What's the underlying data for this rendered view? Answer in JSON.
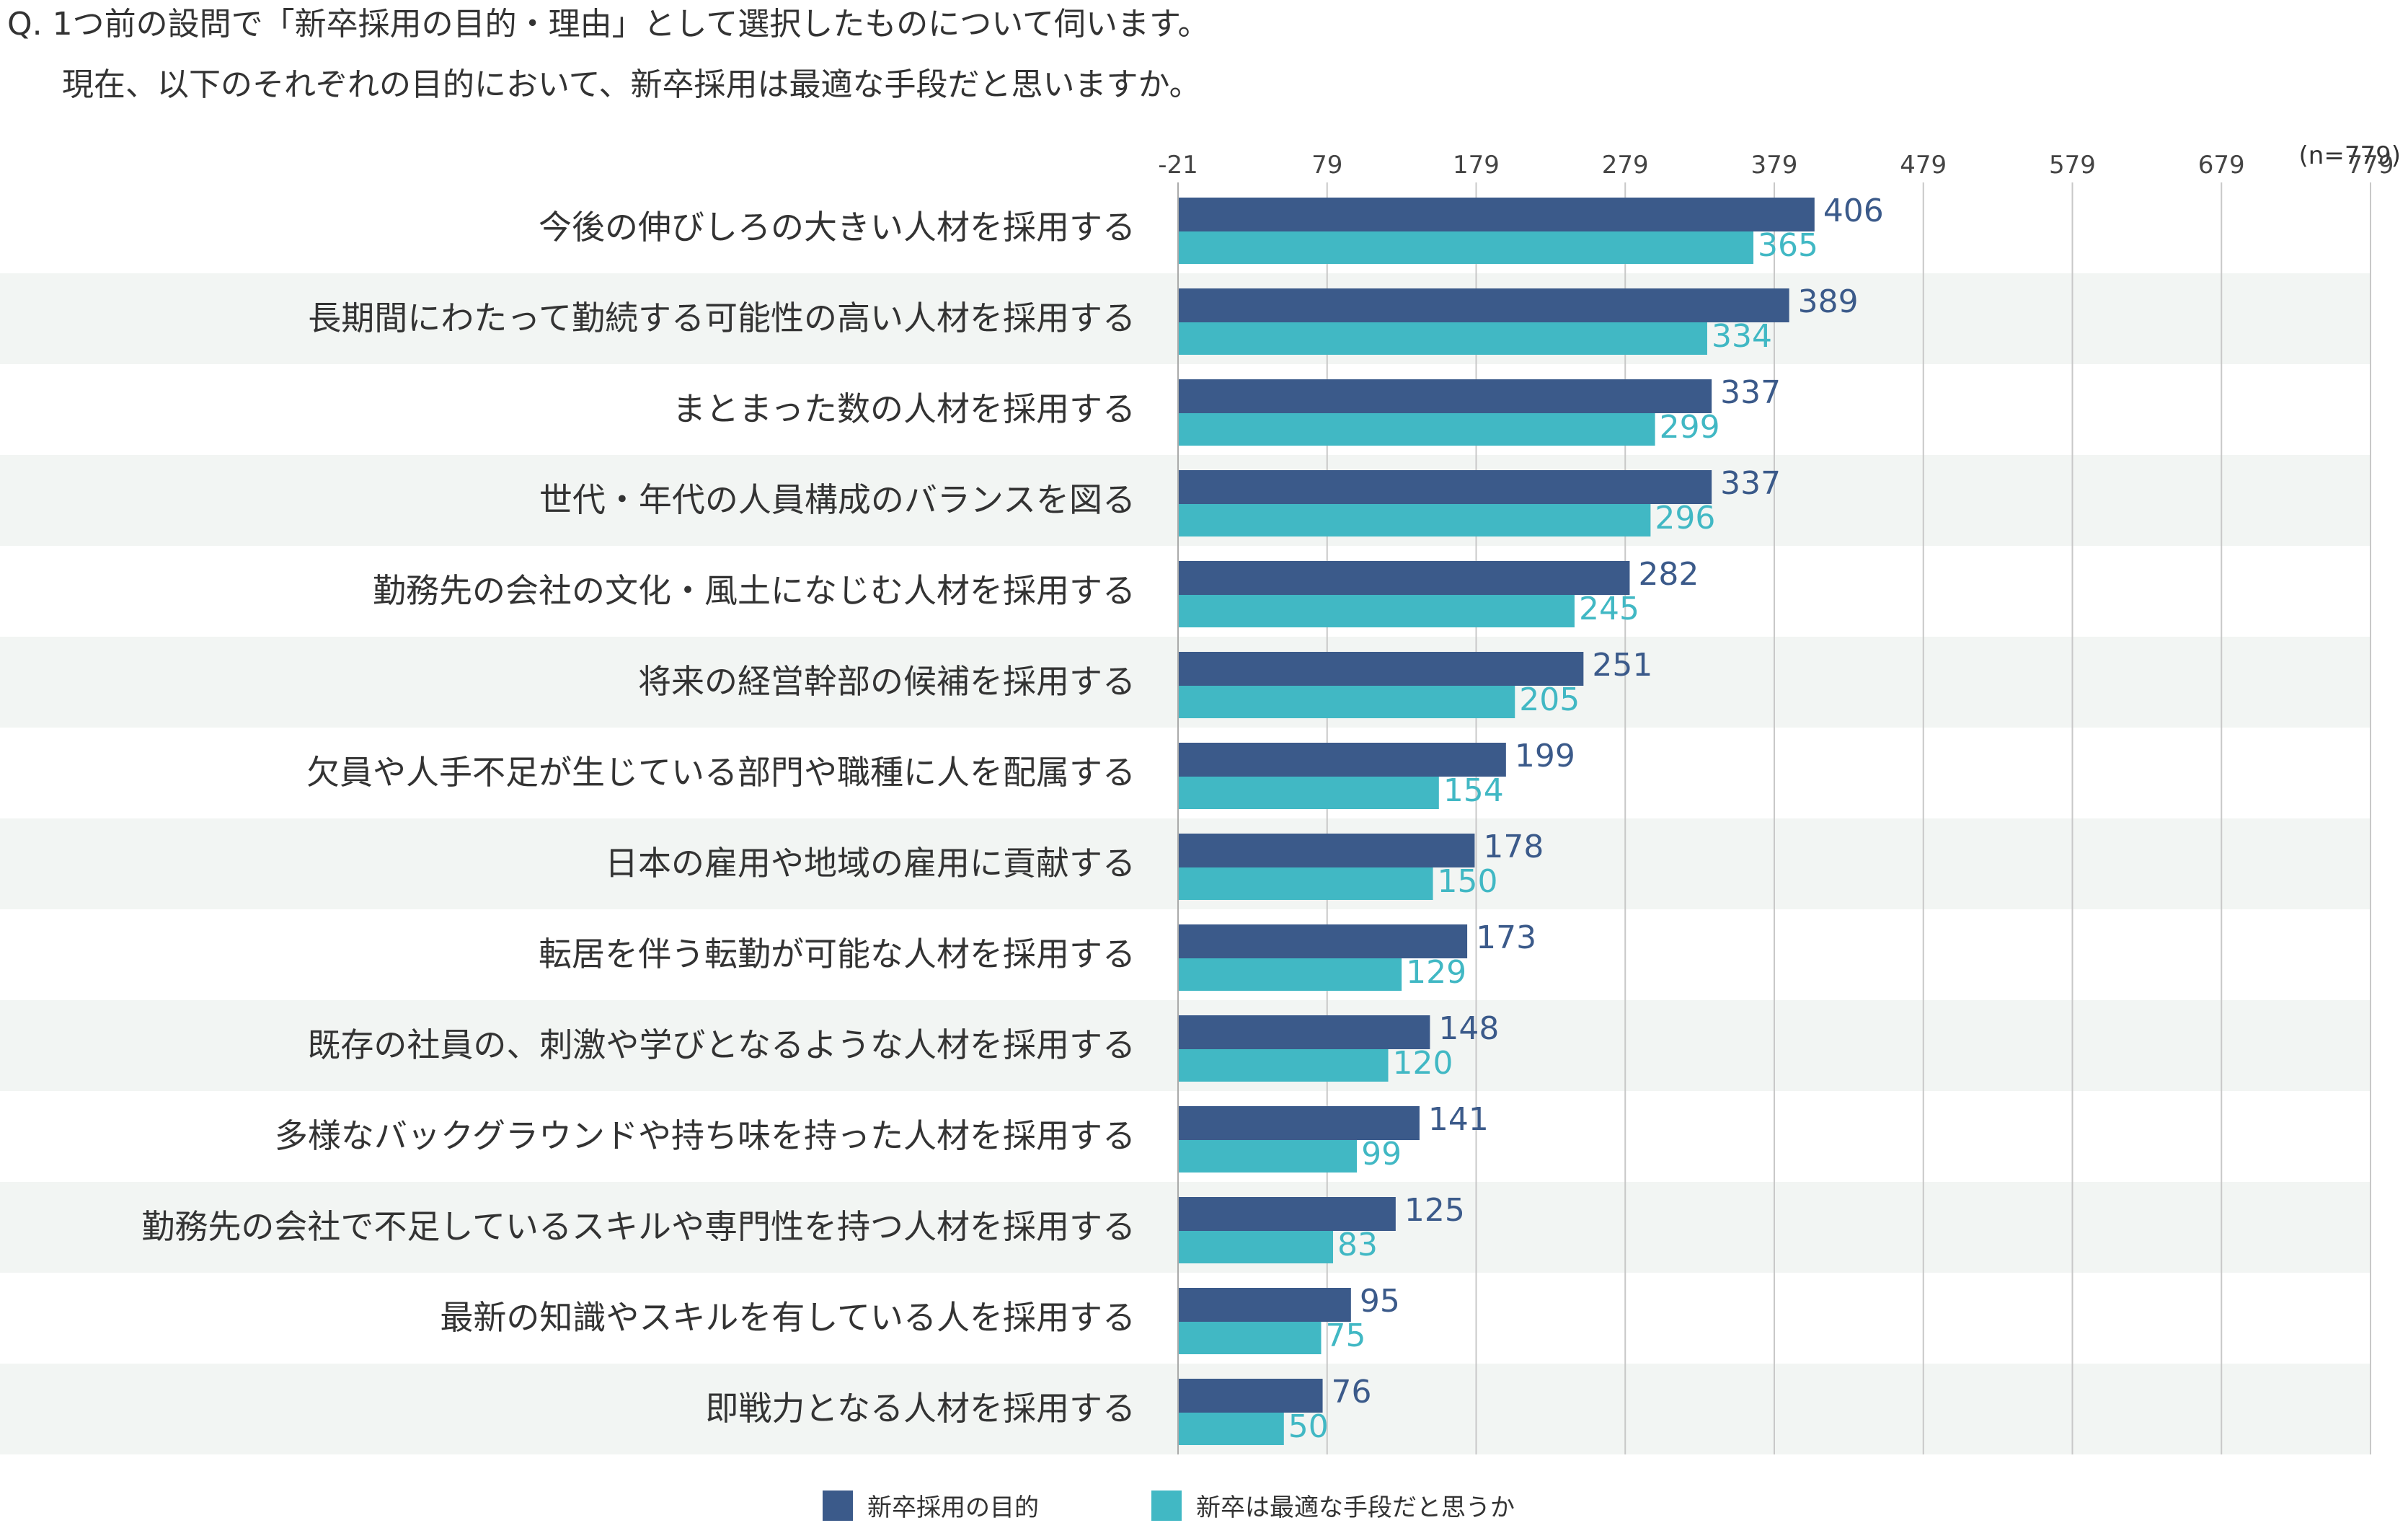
{
  "question": {
    "line1": "Q. 1つ前の設問で「新卒採用の目的・理由」として選択したものについて伺います。",
    "line2": "現在、以下のそれぞれの目的において、新卒採用は最適な手段だと思いますか。"
  },
  "sample_size": "(n=779)",
  "colors": {
    "purpose": "#3b5a8a",
    "optimal": "#41b8c4",
    "band": "#f2f5f3",
    "grid": "#c8c8c8"
  },
  "chart_data": {
    "type": "bar",
    "orientation": "horizontal",
    "xlim": [
      -21,
      779
    ],
    "xticks": [
      "-21",
      "79",
      "179",
      "279",
      "379",
      "479",
      "579",
      "679",
      "779"
    ],
    "grid": true,
    "legend_position": "bottom-center",
    "categories": [
      "今後の伸びしろの大きい人材を採用する",
      "長期間にわたって勤続する可能性の高い人材を採用する",
      "まとまった数の人材を採用する",
      "世代・年代の人員構成のバランスを図る",
      "勤務先の会社の文化・風土になじむ人材を採用する",
      "将来の経営幹部の候補を採用する",
      "欠員や人手不足が生じている部門や職種に人を配属する",
      "日本の雇用や地域の雇用に貢献する",
      "転居を伴う転勤が可能な人材を採用する",
      "既存の社員の、刺激や学びとなるような人材を採用する",
      "多様なバックグラウンドや持ち味を持った人材を採用する",
      "勤務先の会社で不足しているスキルや専門性を持つ人材を採用する",
      "最新の知識やスキルを有している人を採用する",
      "即戦力となる人材を採用する"
    ],
    "series": [
      {
        "name": "新卒採用の目的",
        "values": [
          406,
          389,
          337,
          337,
          282,
          251,
          199,
          178,
          173,
          148,
          141,
          125,
          95,
          76
        ]
      },
      {
        "name": "新卒は最適な手段だと思うか",
        "values": [
          365,
          334,
          299,
          296,
          245,
          205,
          154,
          150,
          129,
          120,
          99,
          83,
          75,
          50
        ]
      }
    ]
  }
}
